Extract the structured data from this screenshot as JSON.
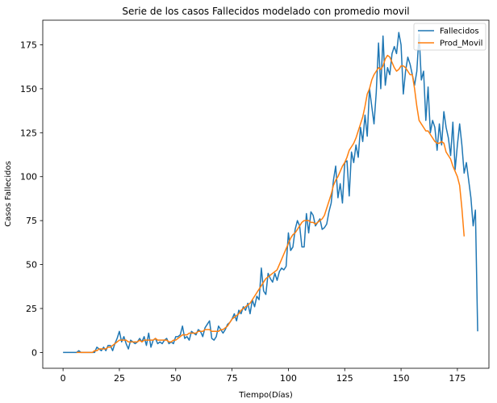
{
  "chart_data": {
    "type": "line",
    "title": "Serie de los casos Fallecidos modelado con promedio movil",
    "xlabel": "Tiempo(Días)",
    "ylabel": "Casos Fallecidos",
    "xlim": [
      -9,
      189
    ],
    "ylim": [
      -9,
      189
    ],
    "xticks": [
      0,
      25,
      50,
      75,
      100,
      125,
      150,
      175
    ],
    "yticks": [
      0,
      25,
      50,
      75,
      100,
      125,
      150,
      175
    ],
    "grid": false,
    "legend": {
      "position": "top-right",
      "entries": [
        "Fallecidos",
        "Prod_Movil"
      ]
    },
    "series": [
      {
        "name": "Fallecidos",
        "color": "#1f77b4",
        "x_start": 0,
        "values": [
          0,
          0,
          0,
          0,
          0,
          0,
          0,
          1,
          0,
          0,
          0,
          0,
          0,
          0,
          0,
          3,
          2,
          1,
          3,
          1,
          4,
          4,
          1,
          5,
          8,
          12,
          6,
          9,
          5,
          2,
          7,
          6,
          5,
          6,
          8,
          6,
          9,
          4,
          11,
          3,
          7,
          8,
          5,
          6,
          5,
          7,
          8,
          5,
          6,
          5,
          9,
          9,
          10,
          15,
          8,
          9,
          7,
          12,
          11,
          10,
          13,
          12,
          9,
          14,
          16,
          18,
          8,
          7,
          9,
          15,
          13,
          11,
          13,
          16,
          17,
          19,
          22,
          18,
          24,
          22,
          26,
          24,
          28,
          22,
          30,
          26,
          32,
          30,
          48,
          35,
          33,
          45,
          42,
          40,
          45,
          41,
          46,
          48,
          47,
          49,
          68,
          58,
          60,
          70,
          75,
          72,
          60,
          60,
          79,
          68,
          80,
          78,
          72,
          74,
          76,
          70,
          71,
          73,
          80,
          85,
          98,
          106,
          88,
          96,
          85,
          108,
          109,
          89,
          114,
          108,
          118,
          111,
          128,
          120,
          135,
          123,
          150,
          140,
          130,
          148,
          176,
          150,
          180,
          152,
          162,
          158,
          170,
          174,
          170,
          182,
          175,
          147,
          160,
          168,
          164,
          158,
          152,
          160,
          181,
          155,
          160,
          132,
          151,
          125,
          132,
          128,
          115,
          130,
          118,
          137,
          128,
          122,
          112,
          131,
          104,
          118,
          130,
          118,
          102,
          108,
          98,
          88,
          72,
          81,
          12
        ]
      },
      {
        "name": "Prod_Movil",
        "color": "#ff7f0e",
        "x_start": 6,
        "values": [
          0,
          0,
          0,
          0,
          0,
          0,
          0,
          0,
          1,
          1,
          2,
          2,
          2,
          2,
          3,
          3,
          4,
          5,
          6,
          7,
          7,
          7,
          7,
          6,
          6,
          6,
          6,
          6,
          7,
          6,
          7,
          7,
          7,
          7,
          7,
          8,
          7,
          7,
          7,
          7,
          7,
          6,
          6,
          7,
          7,
          8,
          9,
          10,
          10,
          10,
          11,
          11,
          11,
          11,
          12,
          12,
          12,
          13,
          13,
          13,
          12,
          12,
          12,
          12,
          13,
          13,
          14,
          15,
          17,
          19,
          20,
          21,
          22,
          24,
          25,
          26,
          27,
          28,
          30,
          32,
          34,
          36,
          38,
          40,
          42,
          43,
          44,
          45,
          46,
          47,
          50,
          53,
          56,
          59,
          62,
          65,
          67,
          68,
          70,
          72,
          74,
          75,
          75,
          75,
          74,
          74,
          73,
          74,
          75,
          76,
          78,
          82,
          86,
          90,
          95,
          98,
          100,
          103,
          106,
          108,
          111,
          115,
          117,
          119,
          122,
          126,
          130,
          134,
          140,
          147,
          150,
          155,
          158,
          160,
          162,
          161,
          163,
          167,
          169,
          168,
          165,
          162,
          160,
          161,
          163,
          163,
          162,
          160,
          158,
          158,
          150,
          140,
          132,
          130,
          128,
          126,
          126,
          124,
          122,
          120,
          119,
          119,
          120,
          119,
          114,
          112,
          110,
          106,
          103,
          100,
          95,
          82,
          66
        ]
      }
    ]
  }
}
